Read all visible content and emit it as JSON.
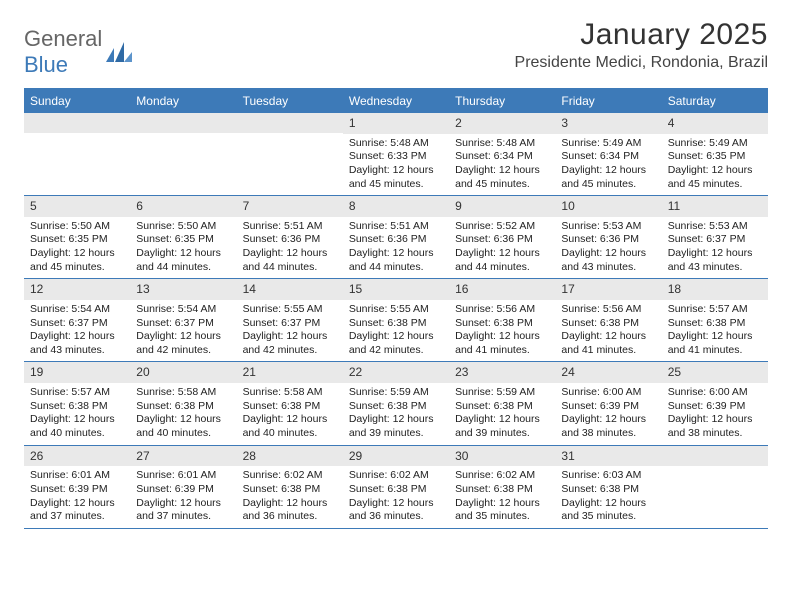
{
  "logo": {
    "text1": "General",
    "text2": "Blue"
  },
  "header": {
    "month_title": "January 2025",
    "location": "Presidente Medici, Rondonia, Brazil"
  },
  "colors": {
    "header_bg": "#3d7ab8",
    "daynum_bg": "#e9e9e9",
    "grid_line": "#3d7ab8",
    "text": "#222222",
    "logo_gray": "#666666",
    "logo_blue": "#3d7ab8"
  },
  "weekdays": [
    "Sunday",
    "Monday",
    "Tuesday",
    "Wednesday",
    "Thursday",
    "Friday",
    "Saturday"
  ],
  "weeks": [
    [
      {
        "n": "",
        "sunrise": "",
        "sunset": "",
        "daylight": ""
      },
      {
        "n": "",
        "sunrise": "",
        "sunset": "",
        "daylight": ""
      },
      {
        "n": "",
        "sunrise": "",
        "sunset": "",
        "daylight": ""
      },
      {
        "n": "1",
        "sunrise": "Sunrise: 5:48 AM",
        "sunset": "Sunset: 6:33 PM",
        "daylight": "Daylight: 12 hours and 45 minutes."
      },
      {
        "n": "2",
        "sunrise": "Sunrise: 5:48 AM",
        "sunset": "Sunset: 6:34 PM",
        "daylight": "Daylight: 12 hours and 45 minutes."
      },
      {
        "n": "3",
        "sunrise": "Sunrise: 5:49 AM",
        "sunset": "Sunset: 6:34 PM",
        "daylight": "Daylight: 12 hours and 45 minutes."
      },
      {
        "n": "4",
        "sunrise": "Sunrise: 5:49 AM",
        "sunset": "Sunset: 6:35 PM",
        "daylight": "Daylight: 12 hours and 45 minutes."
      }
    ],
    [
      {
        "n": "5",
        "sunrise": "Sunrise: 5:50 AM",
        "sunset": "Sunset: 6:35 PM",
        "daylight": "Daylight: 12 hours and 45 minutes."
      },
      {
        "n": "6",
        "sunrise": "Sunrise: 5:50 AM",
        "sunset": "Sunset: 6:35 PM",
        "daylight": "Daylight: 12 hours and 44 minutes."
      },
      {
        "n": "7",
        "sunrise": "Sunrise: 5:51 AM",
        "sunset": "Sunset: 6:36 PM",
        "daylight": "Daylight: 12 hours and 44 minutes."
      },
      {
        "n": "8",
        "sunrise": "Sunrise: 5:51 AM",
        "sunset": "Sunset: 6:36 PM",
        "daylight": "Daylight: 12 hours and 44 minutes."
      },
      {
        "n": "9",
        "sunrise": "Sunrise: 5:52 AM",
        "sunset": "Sunset: 6:36 PM",
        "daylight": "Daylight: 12 hours and 44 minutes."
      },
      {
        "n": "10",
        "sunrise": "Sunrise: 5:53 AM",
        "sunset": "Sunset: 6:36 PM",
        "daylight": "Daylight: 12 hours and 43 minutes."
      },
      {
        "n": "11",
        "sunrise": "Sunrise: 5:53 AM",
        "sunset": "Sunset: 6:37 PM",
        "daylight": "Daylight: 12 hours and 43 minutes."
      }
    ],
    [
      {
        "n": "12",
        "sunrise": "Sunrise: 5:54 AM",
        "sunset": "Sunset: 6:37 PM",
        "daylight": "Daylight: 12 hours and 43 minutes."
      },
      {
        "n": "13",
        "sunrise": "Sunrise: 5:54 AM",
        "sunset": "Sunset: 6:37 PM",
        "daylight": "Daylight: 12 hours and 42 minutes."
      },
      {
        "n": "14",
        "sunrise": "Sunrise: 5:55 AM",
        "sunset": "Sunset: 6:37 PM",
        "daylight": "Daylight: 12 hours and 42 minutes."
      },
      {
        "n": "15",
        "sunrise": "Sunrise: 5:55 AM",
        "sunset": "Sunset: 6:38 PM",
        "daylight": "Daylight: 12 hours and 42 minutes."
      },
      {
        "n": "16",
        "sunrise": "Sunrise: 5:56 AM",
        "sunset": "Sunset: 6:38 PM",
        "daylight": "Daylight: 12 hours and 41 minutes."
      },
      {
        "n": "17",
        "sunrise": "Sunrise: 5:56 AM",
        "sunset": "Sunset: 6:38 PM",
        "daylight": "Daylight: 12 hours and 41 minutes."
      },
      {
        "n": "18",
        "sunrise": "Sunrise: 5:57 AM",
        "sunset": "Sunset: 6:38 PM",
        "daylight": "Daylight: 12 hours and 41 minutes."
      }
    ],
    [
      {
        "n": "19",
        "sunrise": "Sunrise: 5:57 AM",
        "sunset": "Sunset: 6:38 PM",
        "daylight": "Daylight: 12 hours and 40 minutes."
      },
      {
        "n": "20",
        "sunrise": "Sunrise: 5:58 AM",
        "sunset": "Sunset: 6:38 PM",
        "daylight": "Daylight: 12 hours and 40 minutes."
      },
      {
        "n": "21",
        "sunrise": "Sunrise: 5:58 AM",
        "sunset": "Sunset: 6:38 PM",
        "daylight": "Daylight: 12 hours and 40 minutes."
      },
      {
        "n": "22",
        "sunrise": "Sunrise: 5:59 AM",
        "sunset": "Sunset: 6:38 PM",
        "daylight": "Daylight: 12 hours and 39 minutes."
      },
      {
        "n": "23",
        "sunrise": "Sunrise: 5:59 AM",
        "sunset": "Sunset: 6:38 PM",
        "daylight": "Daylight: 12 hours and 39 minutes."
      },
      {
        "n": "24",
        "sunrise": "Sunrise: 6:00 AM",
        "sunset": "Sunset: 6:39 PM",
        "daylight": "Daylight: 12 hours and 38 minutes."
      },
      {
        "n": "25",
        "sunrise": "Sunrise: 6:00 AM",
        "sunset": "Sunset: 6:39 PM",
        "daylight": "Daylight: 12 hours and 38 minutes."
      }
    ],
    [
      {
        "n": "26",
        "sunrise": "Sunrise: 6:01 AM",
        "sunset": "Sunset: 6:39 PM",
        "daylight": "Daylight: 12 hours and 37 minutes."
      },
      {
        "n": "27",
        "sunrise": "Sunrise: 6:01 AM",
        "sunset": "Sunset: 6:39 PM",
        "daylight": "Daylight: 12 hours and 37 minutes."
      },
      {
        "n": "28",
        "sunrise": "Sunrise: 6:02 AM",
        "sunset": "Sunset: 6:38 PM",
        "daylight": "Daylight: 12 hours and 36 minutes."
      },
      {
        "n": "29",
        "sunrise": "Sunrise: 6:02 AM",
        "sunset": "Sunset: 6:38 PM",
        "daylight": "Daylight: 12 hours and 36 minutes."
      },
      {
        "n": "30",
        "sunrise": "Sunrise: 6:02 AM",
        "sunset": "Sunset: 6:38 PM",
        "daylight": "Daylight: 12 hours and 35 minutes."
      },
      {
        "n": "31",
        "sunrise": "Sunrise: 6:03 AM",
        "sunset": "Sunset: 6:38 PM",
        "daylight": "Daylight: 12 hours and 35 minutes."
      },
      {
        "n": "",
        "sunrise": "",
        "sunset": "",
        "daylight": ""
      }
    ]
  ]
}
